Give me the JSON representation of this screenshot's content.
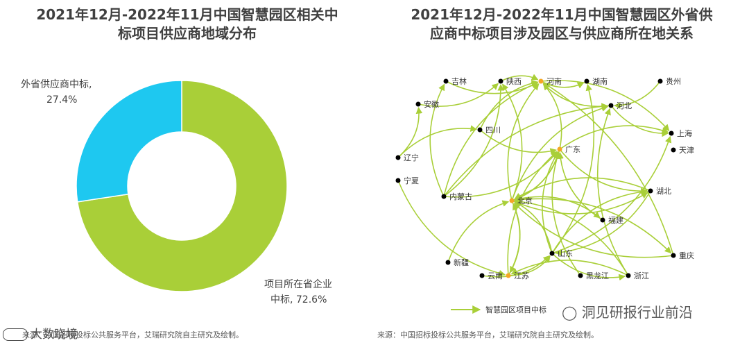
{
  "left": {
    "title_line1": "2021年12月-2022年11月中国智慧园区相关中",
    "title_line2": "标项目供应商地域分布",
    "source": "来源：中国招标投标公共服务平台，艾瑞研究院自主研究及绘制。",
    "watermark": "大数晓境"
  },
  "right": {
    "title_line1": "2021年12月-2022年11月中国智慧园区外省供",
    "title_line2": "应商中标项目涉及园区与供应商所在地关系",
    "source": "来源：中国招标投标公共服务平台，艾瑞研究院自主研究及绘制。",
    "legend_label": "智慧园区项目中标",
    "watermark": "洞见研报行业前沿"
  },
  "colors": {
    "local": "#a9cf38",
    "outside": "#1ec8f0",
    "arrow": "#a9cf38",
    "node_normal": "#000000",
    "node_hub": "#f5a623"
  },
  "chart_data": [
    {
      "type": "pie",
      "variant": "donut",
      "title": "2021年12月-2022年11月中国智慧园区相关中标项目供应商地域分布",
      "slices": [
        {
          "name": "外省供应商中标",
          "label_text": "外省供应商中标,",
          "value": 27.4,
          "value_text": "27.4%",
          "color": "#1ec8f0"
        },
        {
          "name": "项目所在省企业中标",
          "label_line1": "项目所在省企业",
          "label_line2": "中标, 72.6%",
          "value": 72.6,
          "color": "#a9cf38"
        }
      ]
    },
    {
      "type": "network",
      "title": "2021年12月-2022年11月中国智慧园区外省供应商中标项目涉及园区与供应商所在地关系",
      "nodes": [
        {
          "id": "jilin",
          "label": "吉林",
          "hub": false
        },
        {
          "id": "shaanxi",
          "label": "陕西",
          "hub": false
        },
        {
          "id": "henan",
          "label": "河南",
          "hub": true
        },
        {
          "id": "hunan",
          "label": "湖南",
          "hub": false
        },
        {
          "id": "guizhou",
          "label": "贵州",
          "hub": false
        },
        {
          "id": "anhui",
          "label": "安徽",
          "hub": false
        },
        {
          "id": "hebei",
          "label": "河北",
          "hub": false
        },
        {
          "id": "sichuan",
          "label": "四川",
          "hub": false
        },
        {
          "id": "shanghai",
          "label": "上海",
          "hub": false
        },
        {
          "id": "guangdong",
          "label": "广东",
          "hub": true
        },
        {
          "id": "tianjin",
          "label": "天津",
          "hub": false
        },
        {
          "id": "liaoning",
          "label": "辽宁",
          "hub": false
        },
        {
          "id": "ningxia",
          "label": "宁夏",
          "hub": false
        },
        {
          "id": "neimenggu",
          "label": "内蒙古",
          "hub": false
        },
        {
          "id": "beijing",
          "label": "北京",
          "hub": true
        },
        {
          "id": "hubei",
          "label": "湖北",
          "hub": false
        },
        {
          "id": "fujian",
          "label": "福建",
          "hub": false
        },
        {
          "id": "shandong",
          "label": "山东",
          "hub": false
        },
        {
          "id": "chongqing",
          "label": "重庆",
          "hub": false
        },
        {
          "id": "xinjiang",
          "label": "新疆",
          "hub": false
        },
        {
          "id": "yunnan",
          "label": "云南",
          "hub": false
        },
        {
          "id": "jiangsu",
          "label": "江苏",
          "hub": true
        },
        {
          "id": "heilongjiang",
          "label": "黑龙江",
          "hub": false
        },
        {
          "id": "zhejiang",
          "label": "浙江",
          "hub": false
        }
      ],
      "edges": [
        [
          "jilin",
          "henan"
        ],
        [
          "shaanxi",
          "henan"
        ],
        [
          "henan",
          "hunan"
        ],
        [
          "guizhou",
          "hebei"
        ],
        [
          "anhui",
          "shaanxi"
        ],
        [
          "hebei",
          "henan"
        ],
        [
          "hebei",
          "shanghai"
        ],
        [
          "henan",
          "shanghai"
        ],
        [
          "guangdong",
          "henan"
        ],
        [
          "guangdong",
          "shanghai"
        ],
        [
          "guangdong",
          "hubei"
        ],
        [
          "guangdong",
          "beijing"
        ],
        [
          "sichuan",
          "guangdong"
        ],
        [
          "neimenggu",
          "jilin"
        ],
        [
          "neimenggu",
          "shaanxi"
        ],
        [
          "neimenggu",
          "henan"
        ],
        [
          "neimenggu",
          "guangdong"
        ],
        [
          "neimenggu",
          "hebei"
        ],
        [
          "liaoning",
          "anhui"
        ],
        [
          "liaoning",
          "sichuan"
        ],
        [
          "ningxia",
          "jiangsu"
        ],
        [
          "beijing",
          "henan"
        ],
        [
          "beijing",
          "shaanxi"
        ],
        [
          "beijing",
          "hebei"
        ],
        [
          "beijing",
          "guangdong"
        ],
        [
          "beijing",
          "fujian"
        ],
        [
          "beijing",
          "hubei"
        ],
        [
          "beijing",
          "chongqing"
        ],
        [
          "shandong",
          "beijing"
        ],
        [
          "shandong",
          "guangdong"
        ],
        [
          "shandong",
          "hunan"
        ],
        [
          "shandong",
          "hubei"
        ],
        [
          "hubei",
          "beijing"
        ],
        [
          "hubei",
          "shandong"
        ],
        [
          "chongqing",
          "henan"
        ],
        [
          "chongqing",
          "beijing"
        ],
        [
          "zhejiang",
          "beijing"
        ],
        [
          "zhejiang",
          "hebei"
        ],
        [
          "zhejiang",
          "jiangsu"
        ],
        [
          "heilongjiang",
          "guangdong"
        ],
        [
          "jiangsu",
          "beijing"
        ],
        [
          "jiangsu",
          "guangdong"
        ],
        [
          "jiangsu",
          "shandong"
        ],
        [
          "xinjiang",
          "beijing"
        ],
        [
          "yunnan",
          "shandong"
        ],
        [
          "sichuan",
          "henan"
        ],
        [
          "shandong",
          "shanghai"
        ],
        [
          "fujian",
          "guangdong"
        ],
        [
          "shandong",
          "zhejiang"
        ],
        [
          "beijing",
          "jiangsu"
        ]
      ]
    }
  ]
}
